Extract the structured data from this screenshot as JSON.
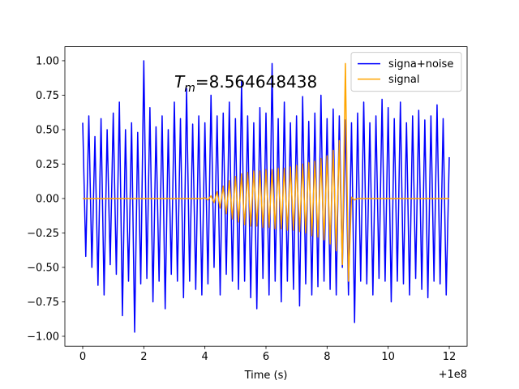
{
  "chart_data": {
    "type": "line",
    "xlabel": "Time (s)",
    "x_offset_label": "+1e8",
    "annotation": {
      "symbol": "T",
      "subscript": "m",
      "text": "=8.564648438"
    },
    "x": [
      100000000.0,
      100000000.1,
      100000000.2,
      100000000.3,
      100000000.4,
      100000000.5,
      100000000.6,
      100000000.7,
      100000000.8,
      100000000.9,
      100000001.0,
      100000001.1,
      100000001.2,
      100000001.3,
      100000001.4,
      100000001.5,
      100000001.6,
      100000001.7,
      100000001.8,
      100000001.9,
      100000002.0,
      100000002.1,
      100000002.2,
      100000002.3,
      100000002.4,
      100000002.5,
      100000002.6,
      100000002.7,
      100000002.8,
      100000002.9,
      100000003.0,
      100000003.1,
      100000003.2,
      100000003.3,
      100000003.4,
      100000003.5,
      100000003.6,
      100000003.7,
      100000003.8,
      100000003.9,
      100000004.0,
      100000004.1,
      100000004.2,
      100000004.3,
      100000004.4,
      100000004.5,
      100000004.6,
      100000004.7,
      100000004.8,
      100000004.9,
      100000005.0,
      100000005.1,
      100000005.2,
      100000005.3,
      100000005.4,
      100000005.5,
      100000005.6,
      100000005.7,
      100000005.8,
      100000005.9,
      100000006.0,
      100000006.1,
      100000006.2,
      100000006.3,
      100000006.4,
      100000006.5,
      100000006.6,
      100000006.7,
      100000006.8,
      100000006.9,
      100000007.0,
      100000007.1,
      100000007.2,
      100000007.3,
      100000007.4,
      100000007.5,
      100000007.6,
      100000007.7,
      100000007.8,
      100000007.9,
      100000008.0,
      100000008.1,
      100000008.2,
      100000008.3,
      100000008.4,
      100000008.5,
      100000008.6,
      100000008.7,
      100000008.8,
      100000008.9,
      100000009.0,
      100000009.1,
      100000009.2,
      100000009.3,
      100000009.4,
      100000009.5,
      100000009.6,
      100000009.7,
      100000009.8,
      100000009.9,
      100000010.0,
      100000010.1,
      100000010.2,
      100000010.3,
      100000010.4,
      100000010.5,
      100000010.6,
      100000010.7,
      100000010.8,
      100000010.9,
      100000011.0,
      100000011.1,
      100000011.2,
      100000011.3,
      100000011.4,
      100000011.5,
      100000011.6,
      100000011.7,
      100000011.8,
      100000011.9,
      100000012.0
    ],
    "series": [
      {
        "name": "signa+noise",
        "color": "#0000ff",
        "values": [
          0.55,
          -0.42,
          0.6,
          -0.5,
          0.45,
          -0.63,
          0.58,
          -0.7,
          0.5,
          -0.48,
          0.62,
          -0.55,
          0.7,
          -0.85,
          0.5,
          -0.6,
          0.55,
          -0.97,
          0.48,
          -0.62,
          1.0,
          -0.58,
          0.66,
          -0.75,
          0.52,
          -0.6,
          0.6,
          -0.8,
          0.5,
          -0.55,
          0.7,
          -0.6,
          0.58,
          -0.72,
          0.8,
          -0.6,
          0.54,
          -0.66,
          0.6,
          -0.7,
          0.55,
          -0.62,
          0.75,
          -0.5,
          0.6,
          -0.7,
          0.62,
          -0.55,
          0.7,
          -0.6,
          0.58,
          -0.66,
          0.85,
          -0.6,
          0.6,
          -0.72,
          0.55,
          -0.8,
          0.66,
          -0.58,
          0.62,
          -0.7,
          0.98,
          -0.6,
          0.58,
          -0.75,
          0.7,
          -0.6,
          0.55,
          -0.66,
          0.6,
          -0.78,
          0.74,
          -0.62,
          0.56,
          -0.7,
          0.62,
          -0.64,
          0.75,
          -0.6,
          0.58,
          -0.66,
          0.65,
          -0.7,
          0.6,
          -0.5,
          0.57,
          -0.7,
          0.55,
          -0.9,
          0.62,
          -0.6,
          0.7,
          -0.62,
          0.55,
          -0.7,
          0.6,
          -0.58,
          0.72,
          -0.6,
          0.66,
          -0.75,
          0.58,
          -0.6,
          0.7,
          -0.62,
          0.55,
          -0.7,
          0.6,
          -0.58,
          0.64,
          -0.66,
          0.57,
          -0.72,
          0.6,
          -0.6,
          0.68,
          -0.62,
          0.58,
          -0.7,
          0.3
        ]
      },
      {
        "name": "signal",
        "color": "#ffa500",
        "values": [
          0,
          0,
          0,
          0,
          0,
          0,
          0,
          0,
          0,
          0,
          0,
          0,
          0,
          0,
          0,
          0,
          0,
          0,
          0,
          0,
          0,
          0,
          0,
          0,
          0,
          0,
          0,
          0,
          0,
          0,
          0,
          0,
          0,
          0,
          0,
          0,
          0,
          0,
          0,
          0,
          0.005,
          -0.01,
          0.02,
          -0.03,
          0.05,
          -0.07,
          0.09,
          -0.11,
          0.13,
          -0.15,
          0.16,
          -0.17,
          0.18,
          -0.19,
          0.19,
          -0.2,
          0.2,
          -0.2,
          0.2,
          -0.21,
          0.21,
          -0.21,
          0.21,
          -0.22,
          0.22,
          -0.22,
          0.22,
          -0.23,
          0.23,
          -0.23,
          0.24,
          -0.24,
          0.25,
          -0.25,
          0.26,
          -0.27,
          0.27,
          -0.28,
          0.29,
          -0.3,
          0.31,
          -0.33,
          0.35,
          -0.38,
          0.42,
          -0.48,
          0.98,
          -0.6,
          0.01,
          -0.01,
          0,
          0,
          0,
          0,
          0,
          0,
          0,
          0,
          0,
          0,
          0,
          0,
          0,
          0,
          0,
          0,
          0,
          0,
          0,
          0,
          0,
          0,
          0,
          0,
          0,
          0,
          0,
          0,
          0,
          0,
          0
        ]
      }
    ],
    "xlim": [
      99999999.416,
      100000012.584
    ],
    "xticks": [
      {
        "value": 100000000,
        "label": "0"
      },
      {
        "value": 100000002,
        "label": "2"
      },
      {
        "value": 100000004,
        "label": "4"
      },
      {
        "value": 100000006,
        "label": "6"
      },
      {
        "value": 100000008,
        "label": "8"
      },
      {
        "value": 100000010,
        "label": "10"
      },
      {
        "value": 100000012,
        "label": "12"
      }
    ],
    "ylim": [
      -1.072,
      1.102
    ],
    "yticks": [
      {
        "value": -1,
        "label": "−1.00"
      },
      {
        "value": -0.75,
        "label": "−0.75"
      },
      {
        "value": -0.5,
        "label": "−0.50"
      },
      {
        "value": -0.25,
        "label": "−0.25"
      },
      {
        "value": 0,
        "label": "0.00"
      },
      {
        "value": 0.25,
        "label": "0.25"
      },
      {
        "value": 0.5,
        "label": "0.50"
      },
      {
        "value": 0.75,
        "label": "0.75"
      },
      {
        "value": 1,
        "label": "1.00"
      }
    ],
    "legend": "upper right",
    "grid": false
  }
}
